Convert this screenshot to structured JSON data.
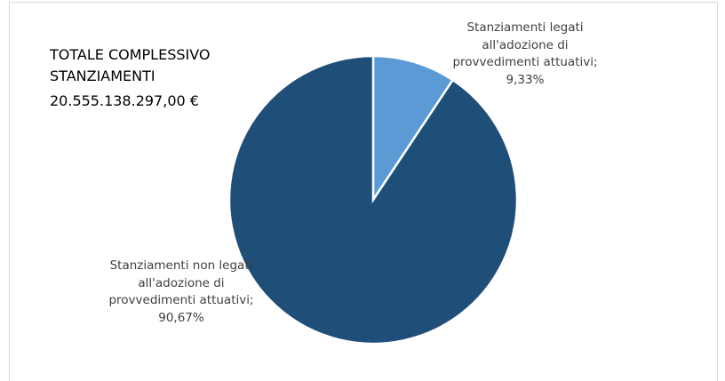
{
  "chart_data": {
    "type": "pie",
    "title": "TOTALE COMPLESSIVO STANZIAMENTI",
    "subtitle": "20.555.138.297,00 €",
    "values": [
      9.33,
      90.67
    ],
    "value_labels": [
      "Stanziamenti legati all'adozione di provvedimenti attuativi; 9,33%",
      "Stanziamenti non legati all'adozione di provvedimenti attuativi; 90,67%"
    ],
    "colors": [
      "#5b9bd5",
      "#1f4e79"
    ]
  }
}
